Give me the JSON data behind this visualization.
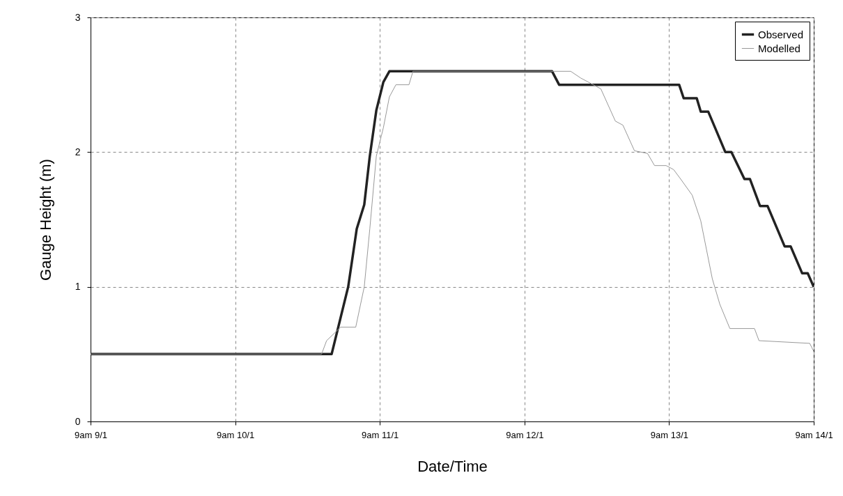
{
  "chart_data": {
    "type": "line",
    "xlabel": "Date/Time",
    "ylabel": "Gauge Height (m)",
    "xlim": [
      "--01-09T09:00",
      "--01-14T09:00"
    ],
    "ylim": [
      0,
      3
    ],
    "xticks": [
      {
        "value": "--01-09T09:00",
        "label": "9am 9/1"
      },
      {
        "value": "--01-10T09:00",
        "label": "9am 10/1"
      },
      {
        "value": "--01-11T09:00",
        "label": "9am 11/1"
      },
      {
        "value": "--01-12T09:00",
        "label": "9am 12/1"
      },
      {
        "value": "--01-13T09:00",
        "label": "9am 13/1"
      },
      {
        "value": "--01-14T09:00",
        "label": "9am 14/1"
      }
    ],
    "yticks": [
      0,
      1,
      2,
      3
    ],
    "grid": true,
    "legend": "top right",
    "series": [
      {
        "name": "Observed",
        "color": "#222222",
        "x": [
          "--01-09T09:00",
          "--01-11T01:00",
          "--01-11T03:45",
          "--01-11T05:10",
          "--01-11T06:25",
          "--01-11T07:20",
          "--01-11T08:25",
          "--01-11T09:35",
          "--01-11T10:35",
          "--01-12T13:35",
          "--01-12T14:45",
          "--01-13T10:40",
          "--01-13T11:25",
          "--01-13T13:35",
          "--01-13T14:15",
          "--01-13T15:30",
          "--01-13T18:20",
          "--01-13T19:20",
          "--01-13T21:30",
          "--01-13T22:25",
          "--01-14T00:05",
          "--01-14T01:20",
          "--01-14T04:10",
          "--01-14T05:10",
          "--01-14T07:05",
          "--01-14T08:00",
          "--01-14T09:00"
        ],
        "values": [
          0.5,
          0.5,
          1.0,
          1.43,
          1.61,
          1.97,
          2.31,
          2.52,
          2.6,
          2.6,
          2.5,
          2.5,
          2.4,
          2.4,
          2.3,
          2.3,
          2.0,
          2.0,
          1.8,
          1.8,
          1.6,
          1.6,
          1.3,
          1.3,
          1.1,
          1.1,
          1.0
        ]
      },
      {
        "name": "Modelled",
        "color": "#999999",
        "x": [
          "--01-09T09:00",
          "--01-10T23:20",
          "--01-11T00:10",
          "--01-11T02:30",
          "--01-11T05:00",
          "--01-11T06:25",
          "--01-11T07:20",
          "--01-11T08:25",
          "--01-11T09:35",
          "--01-11T10:35",
          "--01-11T11:40",
          "--01-11T13:50",
          "--01-11T14:30",
          "--01-12T16:40",
          "--01-12T18:20",
          "--01-12T21:40",
          "--01-13T00:05",
          "--01-13T01:20",
          "--01-13T03:15",
          "--01-13T05:25",
          "--01-13T06:35",
          "--01-13T08:30",
          "--01-13T09:45",
          "--01-13T10:55",
          "--01-13T12:50",
          "--01-13T14:15",
          "--01-13T16:10",
          "--01-13T17:25",
          "--01-13T19:05",
          "--01-13T23:10",
          "--01-13T23:55",
          "--01-14T08:20",
          "--01-14T09:00"
        ],
        "values": [
          0.5,
          0.5,
          0.6,
          0.7,
          0.7,
          1.0,
          1.43,
          1.97,
          2.18,
          2.41,
          2.5,
          2.5,
          2.6,
          2.6,
          2.55,
          2.47,
          2.23,
          2.2,
          2.01,
          1.99,
          1.9,
          1.9,
          1.87,
          1.8,
          1.68,
          1.49,
          1.06,
          0.87,
          0.69,
          0.69,
          0.6,
          0.58,
          0.52
        ]
      }
    ]
  }
}
